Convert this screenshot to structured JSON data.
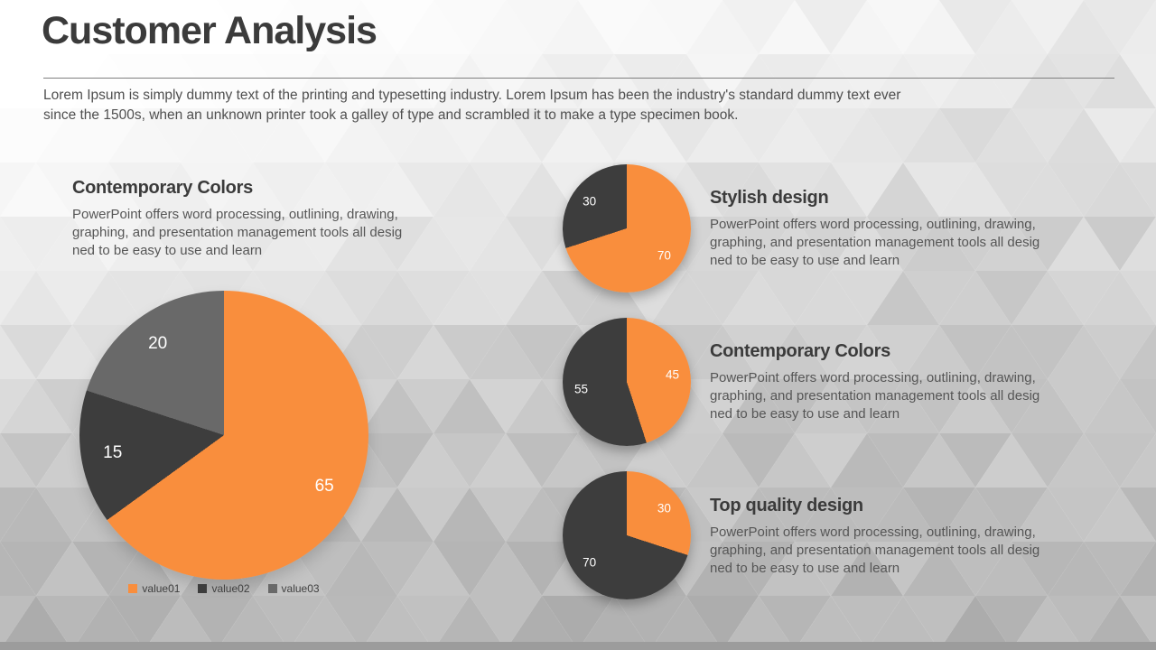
{
  "slide": {
    "title": "Customer Analysis",
    "intro_lines": [
      "Lorem Ipsum is simply dummy text of the printing and typesetting industry. Lorem Ipsum has been the industry's standard dummy text ever",
      "since the 1500s, when an unknown printer took a galley of type and scrambled it to make a type specimen book."
    ]
  },
  "colors": {
    "orange": "#F98E3D",
    "dark": "#3D3D3D",
    "gray": "#696969",
    "heading_text": "#3B3B3B",
    "body_text": "#565656",
    "divider": "#7F7F7F",
    "bottom_strip": "#9C9C9C",
    "label_text": "#FFFFFF"
  },
  "left_feature": {
    "heading": "Contemporary Colors",
    "body_lines": [
      "PowerPoint offers word processing, outlining, drawing,",
      "graphing, and presentation management tools all desig",
      "ned to be easy to use and learn"
    ]
  },
  "features": [
    {
      "heading": "Stylish design",
      "body_lines": [
        "PowerPoint offers word processing, outlining, drawing,",
        "graphing, and presentation management tools all desig",
        "ned to be easy to use and learn"
      ]
    },
    {
      "heading": "Contemporary Colors",
      "body_lines": [
        "PowerPoint offers word processing, outlining, drawing,",
        "graphing, and presentation management tools all desig",
        "ned to be easy to use and learn"
      ]
    },
    {
      "heading": "Top quality design",
      "body_lines": [
        "PowerPoint offers word processing, outlining, drawing,",
        "graphing, and presentation management tools all desig",
        "ned to be easy to use and learn"
      ]
    }
  ],
  "chart_data": [
    {
      "id": "main-pie",
      "type": "pie",
      "title": "Contemporary Colors",
      "direction": "clockwise",
      "start_angle_deg": 0,
      "label_radius": 0.78,
      "slices": [
        {
          "name": "value01",
          "value": 65,
          "label": "65",
          "color": "#F98E3D"
        },
        {
          "name": "value02",
          "value": 15,
          "label": "15",
          "color": "#3D3D3D"
        },
        {
          "name": "value03",
          "value": 20,
          "label": "20",
          "color": "#696969"
        }
      ],
      "legend": {
        "position": "bottom",
        "entries": [
          "value01",
          "value02",
          "value03"
        ]
      }
    },
    {
      "id": "pie-stylish-design",
      "type": "pie",
      "title": "Stylish design",
      "direction": "clockwise",
      "start_angle_deg": 0,
      "label_radius": 0.72,
      "slices": [
        {
          "name": "value01",
          "value": 70,
          "label": "70",
          "color": "#F98E3D"
        },
        {
          "name": "value02",
          "value": 30,
          "label": "30",
          "color": "#3D3D3D"
        }
      ]
    },
    {
      "id": "pie-contemporary-colors",
      "type": "pie",
      "title": "Contemporary Colors",
      "direction": "clockwise",
      "start_angle_deg": 0,
      "label_radius": 0.72,
      "slices": [
        {
          "name": "value01",
          "value": 45,
          "label": "45",
          "color": "#F98E3D"
        },
        {
          "name": "value02",
          "value": 55,
          "label": "55",
          "color": "#3D3D3D"
        }
      ]
    },
    {
      "id": "pie-top-quality-design",
      "type": "pie",
      "title": "Top quality design",
      "direction": "clockwise",
      "start_angle_deg": 0,
      "label_radius": 0.72,
      "slices": [
        {
          "name": "value01",
          "value": 30,
          "label": "30",
          "color": "#F98E3D"
        },
        {
          "name": "value02",
          "value": 70,
          "label": "70",
          "color": "#3D3D3D"
        }
      ]
    }
  ]
}
